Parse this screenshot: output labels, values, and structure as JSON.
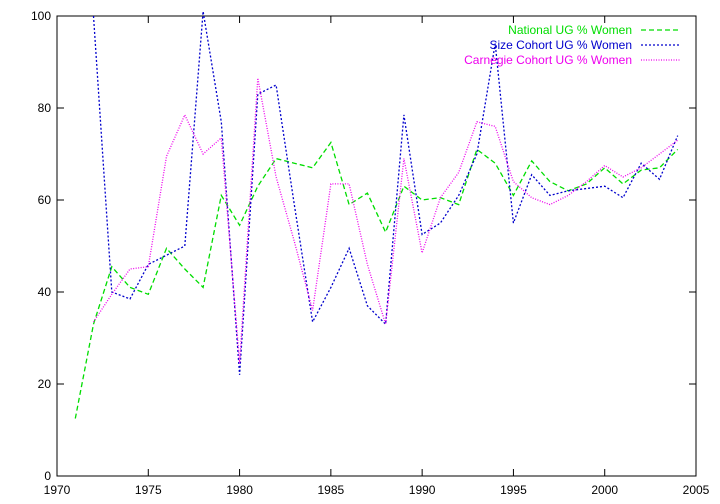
{
  "chart_data": {
    "type": "line",
    "title": "",
    "xlabel": "",
    "ylabel": "",
    "xlim": [
      1970,
      2005
    ],
    "ylim": [
      0,
      100
    ],
    "xticks": [
      1970,
      1975,
      1980,
      1985,
      1990,
      1995,
      2000,
      2005
    ],
    "yticks": [
      0,
      20,
      40,
      60,
      80,
      100
    ],
    "grid": false,
    "legend_position": "top-right",
    "series": [
      {
        "name": "National UG % Women",
        "color": "#00dd00",
        "dash": "dashed",
        "points": [
          [
            1971,
            12.5
          ],
          [
            1972,
            33
          ],
          [
            1973,
            45.5
          ],
          [
            1974,
            41
          ],
          [
            1975,
            39.5
          ],
          [
            1976,
            49.5
          ],
          [
            1977,
            45
          ],
          [
            1978,
            41
          ],
          [
            1979,
            61
          ],
          [
            1980,
            54.5
          ],
          [
            1981,
            63
          ],
          [
            1982,
            69
          ],
          [
            1983,
            68
          ],
          [
            1984,
            67
          ],
          [
            1985,
            72.5
          ],
          [
            1986,
            59
          ],
          [
            1987,
            61.5
          ],
          [
            1988,
            53
          ],
          [
            1989,
            63
          ],
          [
            1990,
            60
          ],
          [
            1991,
            60.5
          ],
          [
            1992,
            59
          ],
          [
            1993,
            71
          ],
          [
            1994,
            68
          ],
          [
            1995,
            61
          ],
          [
            1996,
            68.5
          ],
          [
            1997,
            64
          ],
          [
            1998,
            62
          ],
          [
            1999,
            63.5
          ],
          [
            2000,
            67
          ],
          [
            2001,
            63.5
          ],
          [
            2002,
            66.5
          ],
          [
            2003,
            67
          ],
          [
            2004,
            71
          ]
        ]
      },
      {
        "name": "Size Cohort UG % Women",
        "color": "#0000cc",
        "dash": "dotted",
        "points": [
          [
            1972,
            100
          ],
          [
            1973,
            40
          ],
          [
            1974,
            38.5
          ],
          [
            1975,
            46
          ],
          [
            1976,
            48
          ],
          [
            1977,
            50
          ],
          [
            1978,
            101
          ],
          [
            1979,
            77
          ],
          [
            1980,
            22
          ],
          [
            1981,
            83
          ],
          [
            1982,
            85
          ],
          [
            1983,
            59
          ],
          [
            1984,
            33.5
          ],
          [
            1985,
            41
          ],
          [
            1986,
            49.5
          ],
          [
            1987,
            37
          ],
          [
            1988,
            33
          ],
          [
            1989,
            78.5
          ],
          [
            1990,
            52.5
          ],
          [
            1991,
            55
          ],
          [
            1992,
            61
          ],
          [
            1993,
            70
          ],
          [
            1994,
            94
          ],
          [
            1995,
            55
          ],
          [
            1996,
            65.5
          ],
          [
            1997,
            61
          ],
          [
            1998,
            62
          ],
          [
            1999,
            62.5
          ],
          [
            2000,
            63
          ],
          [
            2001,
            60.5
          ],
          [
            2002,
            68
          ],
          [
            2003,
            64.5
          ],
          [
            2004,
            74
          ]
        ]
      },
      {
        "name": "Carnegie Cohort UG % Women",
        "color": "#ee00ee",
        "dash": "fine-dotted",
        "points": [
          [
            1972,
            33.5
          ],
          [
            1973,
            39.5
          ],
          [
            1974,
            45
          ],
          [
            1975,
            45.5
          ],
          [
            1976,
            69.5
          ],
          [
            1977,
            78.5
          ],
          [
            1978,
            70
          ],
          [
            1979,
            73.5
          ],
          [
            1980,
            24.5
          ],
          [
            1981,
            86.5
          ],
          [
            1982,
            65
          ],
          [
            1983,
            51
          ],
          [
            1984,
            36
          ],
          [
            1985,
            63.5
          ],
          [
            1986,
            63.5
          ],
          [
            1987,
            46
          ],
          [
            1988,
            33
          ],
          [
            1989,
            69
          ],
          [
            1990,
            48.5
          ],
          [
            1991,
            60.5
          ],
          [
            1992,
            66
          ],
          [
            1993,
            77
          ],
          [
            1994,
            76
          ],
          [
            1995,
            64
          ],
          [
            1996,
            60.5
          ],
          [
            1997,
            59
          ],
          [
            1998,
            61
          ],
          [
            1999,
            64
          ],
          [
            2000,
            67.5
          ],
          [
            2001,
            65
          ],
          [
            2002,
            67
          ],
          [
            2003,
            70
          ],
          [
            2004,
            73
          ]
        ]
      }
    ]
  }
}
